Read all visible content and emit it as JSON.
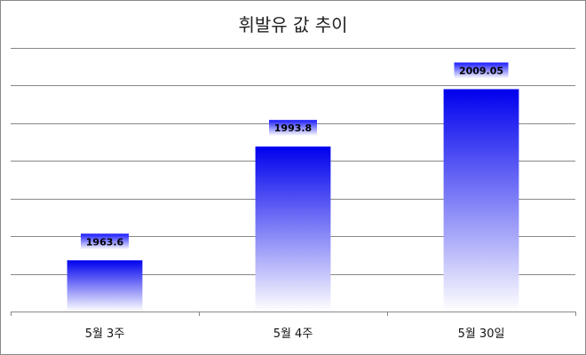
{
  "chart_data": {
    "type": "bar",
    "title": "휘발유 값 추이",
    "categories": [
      "5월 3주",
      "5월 4주",
      "5월 30일"
    ],
    "values": [
      1963.6,
      1993.8,
      2009.05
    ],
    "value_labels": [
      "1963.6",
      "1993.8",
      "2009.05"
    ],
    "ylim": [
      1950,
      2020
    ],
    "xlabel": "",
    "ylabel": "",
    "grid": true,
    "legend": "none",
    "colors": {
      "bar_top": "#0000ee",
      "bar_bottom": "#ffffff",
      "label_box_top": "#1a1aff",
      "label_box_bottom": "#ffffff",
      "gridline": "#888888"
    }
  }
}
